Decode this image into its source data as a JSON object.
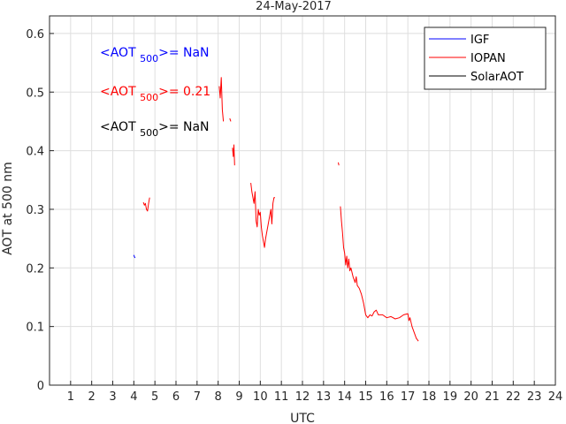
{
  "chart_data": {
    "type": "line",
    "title": "24-May-2017",
    "xlabel": "UTC",
    "ylabel": "AOT at 500 nm",
    "xlim": [
      0,
      24
    ],
    "ylim": [
      0,
      0.63
    ],
    "x_ticks": [
      1,
      2,
      3,
      4,
      5,
      6,
      7,
      8,
      9,
      10,
      11,
      12,
      13,
      14,
      15,
      16,
      17,
      18,
      19,
      20,
      21,
      22,
      23,
      24
    ],
    "y_ticks": [
      0,
      0.1,
      0.2,
      0.3,
      0.4,
      0.5,
      0.6
    ],
    "y_tick_labels": [
      "0",
      "0.1",
      "0.2",
      "0.3",
      "0.4",
      "0.5",
      "0.6"
    ],
    "grid": true,
    "legend_position": "top-right",
    "series": [
      {
        "name": "IGF",
        "color": "#0000ff",
        "segments": [
          [
            [
              4.0,
              0.222
            ],
            [
              4.03,
              0.219
            ],
            [
              4.06,
              0.217
            ]
          ]
        ]
      },
      {
        "name": "IOPAN",
        "color": "#ff0000",
        "segments": [
          [
            [
              4.45,
              0.312
            ],
            [
              4.5,
              0.307
            ],
            [
              4.55,
              0.31
            ],
            [
              4.6,
              0.3
            ],
            [
              4.65,
              0.297
            ],
            [
              4.7,
              0.31
            ],
            [
              4.75,
              0.32
            ]
          ],
          [
            [
              8.05,
              0.51
            ],
            [
              8.1,
              0.49
            ],
            [
              8.15,
              0.525
            ],
            [
              8.2,
              0.47
            ],
            [
              8.25,
              0.45
            ]
          ],
          [
            [
              8.55,
              0.455
            ],
            [
              8.6,
              0.45
            ]
          ],
          [
            [
              8.68,
              0.405
            ],
            [
              8.72,
              0.39
            ],
            [
              8.75,
              0.41
            ],
            [
              8.78,
              0.375
            ]
          ],
          [
            [
              9.55,
              0.345
            ],
            [
              9.6,
              0.33
            ],
            [
              9.65,
              0.32
            ],
            [
              9.7,
              0.31
            ],
            [
              9.75,
              0.33
            ],
            [
              9.8,
              0.28
            ],
            [
              9.85,
              0.27
            ],
            [
              9.9,
              0.3
            ],
            [
              9.95,
              0.29
            ],
            [
              10.0,
              0.295
            ],
            [
              10.05,
              0.27
            ],
            [
              10.1,
              0.255
            ],
            [
              10.15,
              0.245
            ],
            [
              10.2,
              0.235
            ],
            [
              10.25,
              0.25
            ],
            [
              10.3,
              0.26
            ],
            [
              10.35,
              0.27
            ],
            [
              10.4,
              0.28
            ],
            [
              10.45,
              0.29
            ],
            [
              10.5,
              0.3
            ],
            [
              10.55,
              0.275
            ],
            [
              10.6,
              0.31
            ],
            [
              10.65,
              0.32
            ],
            [
              10.7,
              0.32
            ]
          ],
          [
            [
              13.7,
              0.38
            ],
            [
              13.73,
              0.375
            ]
          ],
          [
            [
              13.8,
              0.305
            ],
            [
              13.85,
              0.28
            ],
            [
              13.9,
              0.26
            ],
            [
              13.95,
              0.235
            ],
            [
              14.0,
              0.225
            ],
            [
              14.05,
              0.205
            ],
            [
              14.1,
              0.22
            ],
            [
              14.15,
              0.2
            ],
            [
              14.2,
              0.215
            ],
            [
              14.25,
              0.195
            ],
            [
              14.3,
              0.2
            ],
            [
              14.4,
              0.185
            ],
            [
              14.5,
              0.175
            ],
            [
              14.55,
              0.185
            ],
            [
              14.6,
              0.17
            ],
            [
              14.7,
              0.165
            ],
            [
              14.8,
              0.155
            ],
            [
              14.9,
              0.14
            ],
            [
              15.0,
              0.12
            ],
            [
              15.1,
              0.115
            ],
            [
              15.2,
              0.12
            ],
            [
              15.3,
              0.118
            ],
            [
              15.4,
              0.125
            ],
            [
              15.5,
              0.128
            ],
            [
              15.6,
              0.12
            ],
            [
              15.8,
              0.12
            ],
            [
              16.0,
              0.115
            ],
            [
              16.2,
              0.117
            ],
            [
              16.4,
              0.113
            ],
            [
              16.6,
              0.115
            ],
            [
              16.8,
              0.12
            ],
            [
              17.0,
              0.122
            ],
            [
              17.05,
              0.11
            ],
            [
              17.1,
              0.115
            ],
            [
              17.2,
              0.1
            ],
            [
              17.3,
              0.09
            ],
            [
              17.4,
              0.08
            ],
            [
              17.5,
              0.075
            ]
          ]
        ]
      },
      {
        "name": "SolarAOT",
        "color": "#000000",
        "segments": []
      }
    ],
    "annotations": [
      {
        "prefix": "<AOT ",
        "subscript": "500",
        "suffix": ">= NaN",
        "color": "#0000ff"
      },
      {
        "prefix": "<AOT ",
        "subscript": "500",
        "suffix": ">= 0.21",
        "color": "#ff0000"
      },
      {
        "prefix": "<AOT ",
        "subscript": "500",
        "suffix": ">= NaN",
        "color": "#000000"
      }
    ]
  }
}
